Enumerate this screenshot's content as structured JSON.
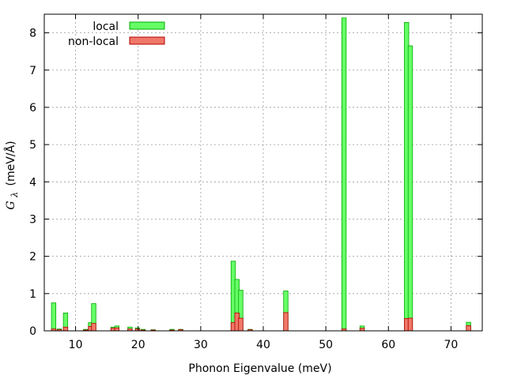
{
  "chart_data": {
    "type": "bar",
    "xlabel": "Phonon Eigenvalue (meV)",
    "ylabel": {
      "symbol": "G",
      "subscript": "λ",
      "units": "(meV/Å)"
    },
    "xlim": [
      5,
      75
    ],
    "ylim": [
      0,
      8.5
    ],
    "xticks": [
      10,
      20,
      30,
      40,
      50,
      60,
      70
    ],
    "yticks": [
      0,
      1,
      2,
      3,
      4,
      5,
      6,
      7,
      8
    ],
    "grid": true,
    "legend_position": "top-left",
    "bar_width_mev": 0.7,
    "series": [
      {
        "name": "local",
        "color": "#66ff66",
        "edge": "#00aa00",
        "x": [
          6.5,
          7.4,
          8.4,
          11.6,
          12.4,
          12.9,
          16.0,
          16.6,
          18.7,
          19.9,
          20.8,
          22.4,
          25.4,
          26.8,
          35.2,
          35.8,
          36.4,
          37.9,
          43.6,
          52.9,
          55.8,
          62.9,
          63.5,
          72.8
        ],
        "values": [
          0.75,
          0.05,
          0.48,
          0.04,
          0.22,
          0.73,
          0.1,
          0.13,
          0.1,
          0.08,
          0.04,
          0.03,
          0.04,
          0.04,
          1.87,
          1.38,
          1.09,
          0.04,
          1.07,
          8.4,
          0.13,
          8.28,
          7.65,
          0.23
        ]
      },
      {
        "name": "non-local",
        "color": "#f07868",
        "edge": "#b00000",
        "x": [
          6.5,
          7.4,
          8.4,
          11.6,
          12.4,
          12.9,
          16.0,
          16.6,
          18.7,
          19.9,
          20.8,
          22.4,
          25.4,
          26.8,
          35.2,
          35.8,
          36.4,
          37.9,
          43.6,
          52.9,
          55.8,
          62.9,
          63.5,
          72.8
        ],
        "values": [
          0.05,
          0.03,
          0.1,
          0.02,
          0.12,
          0.2,
          0.07,
          0.08,
          0.05,
          0.05,
          0.02,
          0.02,
          0.02,
          0.03,
          0.22,
          0.48,
          0.34,
          0.03,
          0.49,
          0.05,
          0.07,
          0.33,
          0.34,
          0.14
        ]
      }
    ]
  }
}
